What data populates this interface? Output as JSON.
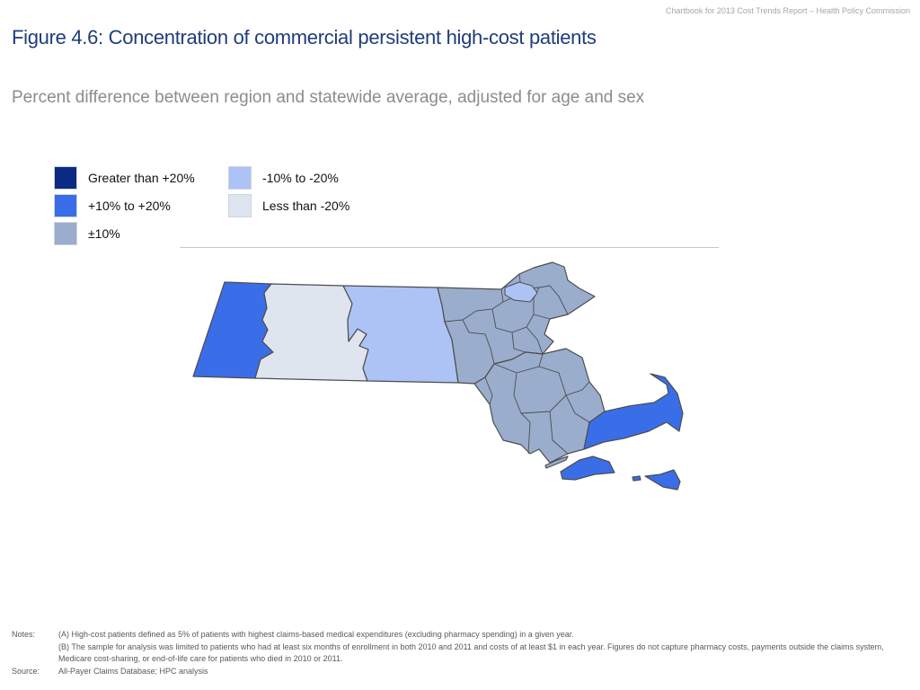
{
  "header_note": "Chartbook for 2013 Cost Trends Report – Health Policy Commission",
  "title": "Figure 4.6: Concentration of commercial persistent high-cost patients",
  "subtitle": "Percent difference between region and statewide average, adjusted for age and sex",
  "legend": [
    {
      "label": "Greater than +20%",
      "color": "#0b2a84"
    },
    {
      "label": "+10% to +20%",
      "color": "#3a6ee8"
    },
    {
      "label": "±10%",
      "color": "#9aadcd"
    },
    {
      "label": "-10% to -20%",
      "color": "#adc3f5"
    },
    {
      "label": "Less than -20%",
      "color": "#dfe5ee"
    }
  ],
  "map_colors": {
    "border": "#4d4d4d",
    "plus_10_to_20": "#3a6ee8",
    "plus_minus_10": "#9aadcd",
    "minus_10_to_20": "#adc3f5",
    "less_than_minus_20": "#dfe5ee"
  },
  "notes_label": "Notes:",
  "notes": [
    "(A) High-cost patients defined as 5% of patients with highest claims-based medical expenditures (excluding pharmacy spending) in a given year.",
    "(B) The sample for analysis was limited to patients who had at least six months of enrollment in both 2010 and 2011 and costs of at least $1 in each year. Figures do not capture pharmacy costs, payments outside the claims system, Medicare cost-sharing, or end-of-life care for patients who died in 2010 or 2011."
  ],
  "source_label": "Source:",
  "source": "All-Payer Claims Database; HPC analysis"
}
